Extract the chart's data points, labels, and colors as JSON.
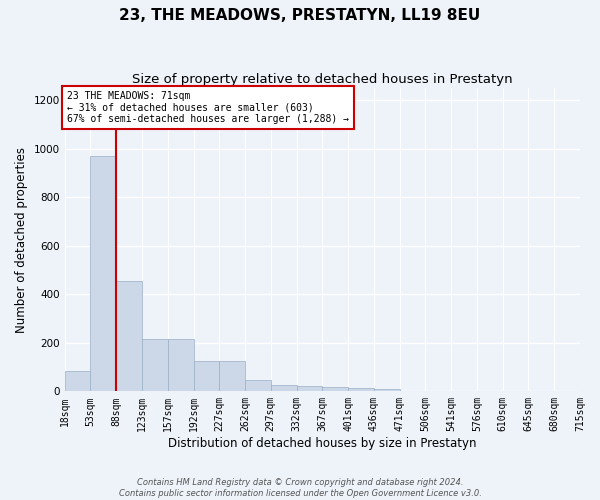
{
  "title": "23, THE MEADOWS, PRESTATYN, LL19 8EU",
  "subtitle": "Size of property relative to detached houses in Prestatyn",
  "xlabel": "Distribution of detached houses by size in Prestatyn",
  "ylabel": "Number of detached properties",
  "bar_values": [
    83,
    970,
    453,
    215,
    215,
    125,
    125,
    45,
    25,
    22,
    18,
    15,
    10,
    0,
    0,
    0,
    0,
    0,
    0,
    0
  ],
  "bar_labels": [
    "18sqm",
    "53sqm",
    "88sqm",
    "123sqm",
    "157sqm",
    "192sqm",
    "227sqm",
    "262sqm",
    "297sqm",
    "332sqm",
    "367sqm",
    "401sqm",
    "436sqm",
    "471sqm",
    "506sqm",
    "541sqm",
    "576sqm",
    "610sqm",
    "645sqm",
    "680sqm",
    "715sqm"
  ],
  "bar_color": "#ccd8e8",
  "bar_edge_color": "#9ab0c8",
  "annotation_box_color": "#ffffff",
  "annotation_border_color": "#cc0000",
  "vline_color": "#cc0000",
  "annotation_title": "23 THE MEADOWS: 71sqm",
  "annotation_line1": "← 31% of detached houses are smaller (603)",
  "annotation_line2": "67% of semi-detached houses are larger (1,288) →",
  "footer1": "Contains HM Land Registry data © Crown copyright and database right 2024.",
  "footer2": "Contains public sector information licensed under the Open Government Licence v3.0.",
  "ylim": [
    0,
    1250
  ],
  "yticks": [
    0,
    200,
    400,
    600,
    800,
    1000,
    1200
  ],
  "background_color": "#eef2f9",
  "grid_color": "#ffffff",
  "title_fontsize": 11,
  "subtitle_fontsize": 9.5,
  "axis_label_fontsize": 8.5,
  "tick_fontsize": 7,
  "annotation_fontsize": 7,
  "footer_fontsize": 6
}
